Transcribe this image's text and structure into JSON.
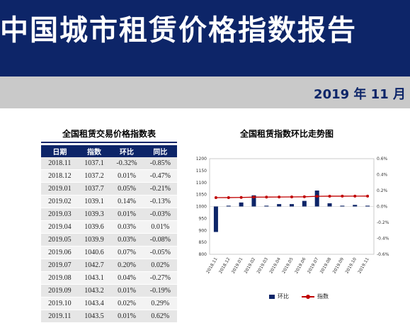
{
  "header": {
    "title": "中国城市租赁价格指数报告",
    "date": "2019 年 11 月"
  },
  "table": {
    "title": "全国租赁交易价格指数表",
    "columns": [
      "日期",
      "指数",
      "环比",
      "同比"
    ],
    "rows": [
      [
        "2018.11",
        "1037.1",
        "-0.32%",
        "-0.85%"
      ],
      [
        "2018.12",
        "1037.2",
        "0.01%",
        "-0.47%"
      ],
      [
        "2019.01",
        "1037.7",
        "0.05%",
        "-0.21%"
      ],
      [
        "2019.02",
        "1039.1",
        "0.14%",
        "-0.13%"
      ],
      [
        "2019.03",
        "1039.3",
        "0.01%",
        "-0.03%"
      ],
      [
        "2019.04",
        "1039.6",
        "0.03%",
        "0.01%"
      ],
      [
        "2019.05",
        "1039.9",
        "0.03%",
        "-0.08%"
      ],
      [
        "2019.06",
        "1040.6",
        "0.07%",
        "-0.05%"
      ],
      [
        "2019.07",
        "1042.7",
        "0.20%",
        "0.02%"
      ],
      [
        "2019.08",
        "1043.1",
        "0.04%",
        "-0.27%"
      ],
      [
        "2019.09",
        "1043.2",
        "0.01%",
        "-0.19%"
      ],
      [
        "2019.10",
        "1043.4",
        "0.02%",
        "0.29%"
      ],
      [
        "2019.11",
        "1043.5",
        "0.01%",
        "0.62%"
      ]
    ]
  },
  "chart_data": {
    "type": "bar",
    "title": "全国租赁指数环比走势图",
    "categories": [
      "2018.11",
      "2018.12",
      "2019.01",
      "2019.02",
      "2019.03",
      "2019.04",
      "2019.05",
      "2019.06",
      "2019.07",
      "2019.08",
      "2019.09",
      "2019.10",
      "2019.11"
    ],
    "series": [
      {
        "name": "环比",
        "type": "bar",
        "axis": "right",
        "values": [
          -0.32,
          0.01,
          0.05,
          0.14,
          0.01,
          0.03,
          0.03,
          0.07,
          0.2,
          0.04,
          0.01,
          0.02,
          0.01
        ],
        "color": "#0d2568"
      },
      {
        "name": "指数",
        "type": "line",
        "axis": "left",
        "values": [
          1037.1,
          1037.2,
          1037.7,
          1039.1,
          1039.3,
          1039.6,
          1039.9,
          1040.6,
          1042.7,
          1043.1,
          1043.2,
          1043.4,
          1043.5
        ],
        "color": "#c00000"
      }
    ],
    "ylim_left": [
      800,
      1200
    ],
    "yticks_left": [
      "800",
      "850",
      "900",
      "950",
      "1000",
      "1050",
      "1100",
      "1150",
      "1200"
    ],
    "ylim_right": [
      -0.6,
      0.6
    ],
    "yticks_right": [
      "-0.6%",
      "-0.4%",
      "-0.2%",
      "0.0%",
      "0.2%",
      "0.4%",
      "0.6%"
    ],
    "grid": false,
    "legend_position": "bottom"
  }
}
